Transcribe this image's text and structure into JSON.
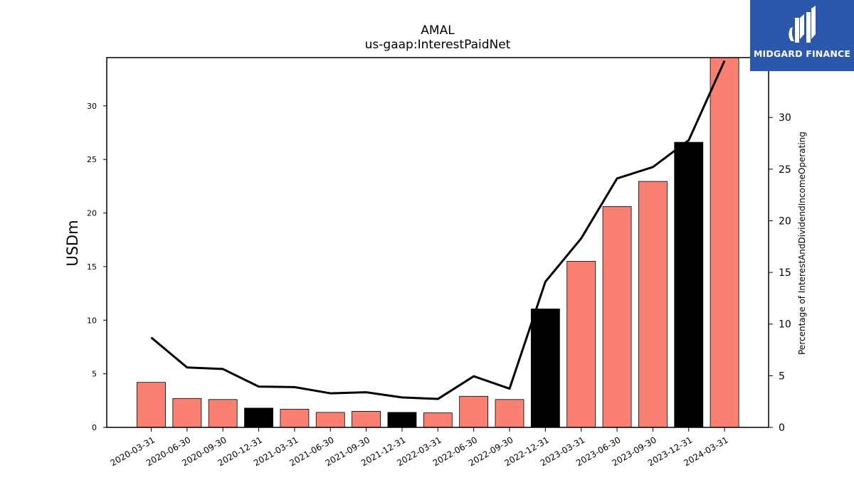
{
  "chart_data": {
    "type": "bar",
    "title": "AMAL",
    "subtitle": "us-gaap:InterestPaidNet",
    "ylabel": "USDm",
    "y2label": "Percentage of InterestAndDividendIncomeOperating",
    "categories": [
      "2020-03-31",
      "2020-06-30",
      "2020-09-30",
      "2020-12-31",
      "2021-03-31",
      "2021-06-30",
      "2021-09-30",
      "2021-12-31",
      "2022-03-31",
      "2022-06-30",
      "2022-09-30",
      "2022-12-31",
      "2023-03-31",
      "2023-06-30",
      "2023-09-30",
      "2023-12-31",
      "2024-03-31"
    ],
    "series": [
      {
        "type": "bar",
        "values": [
          4.2,
          2.7,
          2.6,
          1.8,
          1.7,
          1.4,
          1.5,
          1.4,
          1.35,
          2.9,
          2.6,
          11.05,
          15.5,
          20.6,
          22.95,
          26.6,
          34.8
        ],
        "colors": [
          "#fa8072",
          "#fa8072",
          "#fa8072",
          "#000000",
          "#fa8072",
          "#fa8072",
          "#fa8072",
          "#000000",
          "#fa8072",
          "#fa8072",
          "#fa8072",
          "#000000",
          "#fa8072",
          "#fa8072",
          "#fa8072",
          "#000000",
          "#fa8072"
        ]
      },
      {
        "type": "line",
        "axis": "right",
        "color": "#000000",
        "values": [
          8.7,
          5.8,
          5.65,
          3.95,
          3.9,
          3.3,
          3.4,
          2.9,
          2.75,
          4.95,
          3.75,
          14.1,
          18.3,
          24.1,
          25.2,
          27.8,
          35.5
        ]
      }
    ],
    "ylim": [
      0,
      34.5
    ],
    "y2lim": [
      0,
      35.8
    ],
    "yticks": [
      0,
      5,
      10,
      15,
      20,
      25,
      30
    ],
    "y2ticks": [
      0,
      5,
      10,
      15,
      20,
      25,
      30
    ],
    "grid": false,
    "colors": {
      "bar": "#fa8072",
      "bar_highlight": "#000000",
      "line": "#000000"
    }
  },
  "logo": {
    "text": "MIDGARD FINANCE",
    "background": "#2b58ac",
    "foreground": "#ffffff"
  }
}
